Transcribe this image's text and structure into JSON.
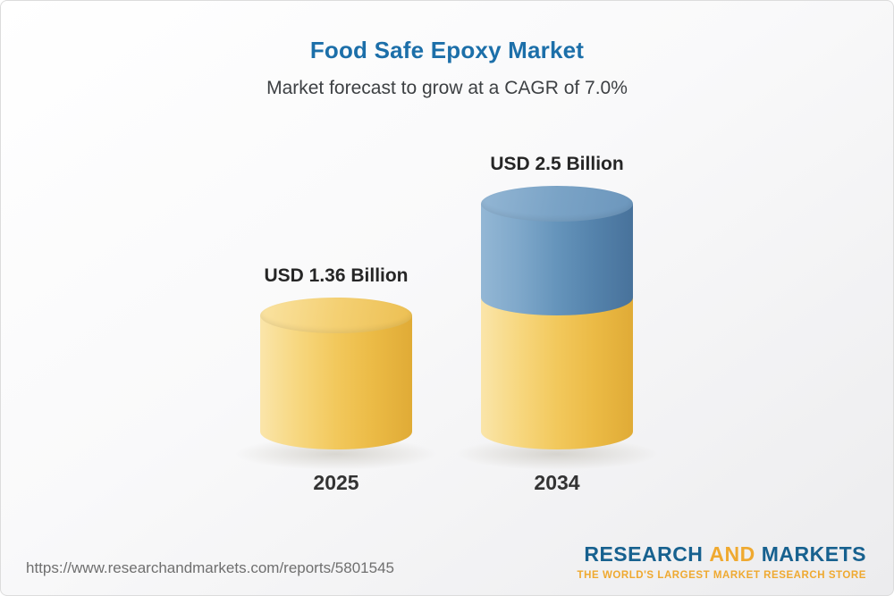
{
  "colors": {
    "title_blue": "#1C6FA9",
    "logo_blue": "#17618F",
    "logo_gold": "#EFA930",
    "bar_yellow": "#F2C85C",
    "bar_blue": "#5E8CB5"
  },
  "chart_data": {
    "type": "bar",
    "subtype": "3d-cylinder-stacked",
    "title": "Food Safe Epoxy Market",
    "subtitle": "Market forecast to grow at a CAGR of 7.0%",
    "unit": "USD Billion",
    "cagr_percent": 7.0,
    "categories": [
      "2025",
      "2034"
    ],
    "values": [
      1.36,
      2.5
    ],
    "value_labels": [
      "USD 1.36 Billion",
      "USD 2.5 Billion"
    ],
    "ylim": [
      0,
      2.75
    ],
    "grid": false,
    "legend": false,
    "bars": [
      {
        "category": "2025",
        "value": 1.36,
        "value_label": "USD 1.36 Billion",
        "segments": [
          {
            "name": "2025-base",
            "value": 1.36,
            "color": "#F2C85C",
            "gradient": [
              "#FAE5AA",
              "#F7D77F",
              "#F2C85C",
              "#EBBA45",
              "#E0AB36"
            ],
            "cap_gradient": [
              "#FAE3A3",
              "#F4D073",
              "#ECBF52"
            ]
          }
        ]
      },
      {
        "category": "2034",
        "value": 2.5,
        "value_label": "USD 2.5 Billion",
        "segments": [
          {
            "name": "2034-growth",
            "value": 1.14,
            "color": "#5E8CB5",
            "gradient": [
              "#93B7D5",
              "#7FA8CA",
              "#6594BB",
              "#5482AB",
              "#48729B"
            ],
            "cap_gradient": [
              "#93B6D4",
              "#7AA3C6",
              "#6C96BC"
            ]
          },
          {
            "name": "2034-base",
            "value": 1.36,
            "color": "#F2C85C",
            "gradient": [
              "#FAE5AA",
              "#F7D77F",
              "#F2C85C",
              "#EBBA45",
              "#E0AB36"
            ]
          }
        ]
      }
    ]
  },
  "footer": {
    "url": "https://www.researchandmarkets.com/reports/5801545",
    "logo": {
      "word1": "RESEARCH",
      "word2": "AND",
      "word3": "MARKETS",
      "tagline": "THE WORLD'S LARGEST MARKET RESEARCH STORE"
    }
  }
}
